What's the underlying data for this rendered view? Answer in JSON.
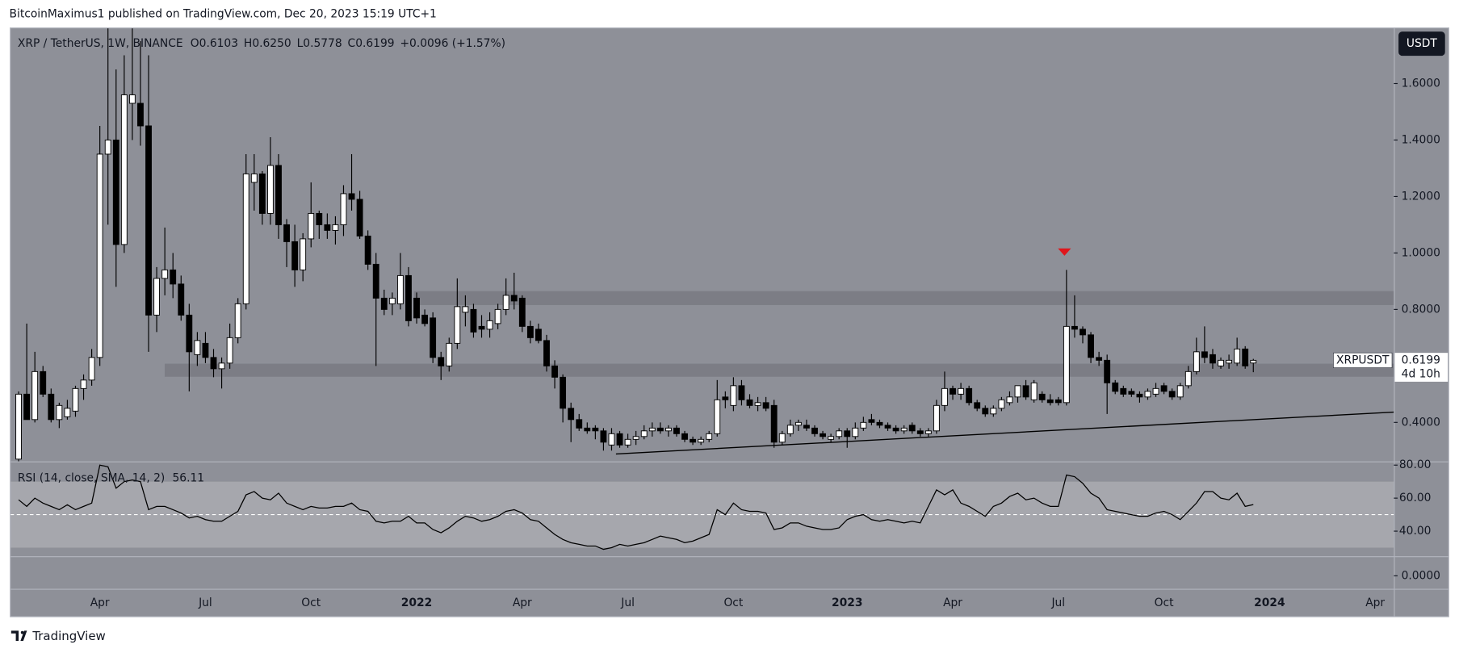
{
  "header": "BitcoinMaximus1 published on TradingView.com, Dec 20, 2023 15:19 UTC+1",
  "footer": "TradingView",
  "chart_data": [
    {
      "type": "candlestick",
      "title": "XRP / TetherUS, 1W, BINANCE",
      "legend": [
        {
          "key": "O",
          "value": "0.6103"
        },
        {
          "key": "H",
          "value": "0.6250"
        },
        {
          "key": "L",
          "value": "0.5778"
        },
        {
          "key": "C",
          "value": "0.6199"
        }
      ],
      "change": "+0.0096 (+1.57%)",
      "symbol": "XRPUSDT",
      "currency": "USDT",
      "countdown": "4d 10h",
      "up_color": "#ffffff",
      "down_color": "#000000",
      "ylim": [
        0.262,
        1.797
      ],
      "yticks": [
        {
          "value": 0.4,
          "label": "0.4000"
        },
        {
          "value": 0.8,
          "label": "0.8000"
        },
        {
          "value": 1.0,
          "label": "1.0000"
        },
        {
          "value": 1.2,
          "label": "1.2000"
        },
        {
          "value": 1.4,
          "label": "1.4000"
        },
        {
          "value": 1.6,
          "label": "1.6000"
        }
      ],
      "categories": [
        null,
        null,
        null,
        null,
        null,
        null,
        null,
        null,
        null,
        null,
        "Apr",
        null,
        null,
        null,
        null,
        null,
        null,
        null,
        null,
        null,
        null,
        null,
        null,
        "Jul",
        null,
        null,
        null,
        null,
        null,
        null,
        null,
        null,
        null,
        null,
        null,
        null,
        "Oct",
        null,
        null,
        null,
        null,
        null,
        null,
        null,
        null,
        null,
        null,
        null,
        null,
        "2022",
        null,
        null,
        null,
        null,
        null,
        null,
        null,
        null,
        null,
        null,
        null,
        null,
        "Apr",
        null,
        null,
        null,
        null,
        null,
        null,
        null,
        null,
        null,
        null,
        null,
        null,
        "Jul",
        null,
        null,
        null,
        null,
        null,
        null,
        null,
        null,
        null,
        null,
        null,
        null,
        "Oct",
        null,
        null,
        null,
        null,
        null,
        null,
        null,
        null,
        null,
        null,
        null,
        null,
        null,
        "2023",
        null,
        null,
        null,
        null,
        null,
        null,
        null,
        null,
        null,
        null,
        null,
        null,
        "Apr",
        null,
        null,
        null,
        null,
        null,
        null,
        null,
        null,
        null,
        null,
        null,
        null,
        "Jul",
        null,
        null,
        null,
        null,
        null,
        null,
        null,
        null,
        null,
        null,
        null,
        null,
        "Oct",
        null,
        null,
        null,
        null,
        null,
        null,
        null,
        null,
        null,
        null,
        null,
        null,
        "2024",
        null,
        null,
        null,
        null,
        null,
        null,
        null,
        null,
        null,
        null,
        null,
        null,
        "Apr"
      ],
      "open": [
        0.27,
        0.5,
        0.41,
        0.58,
        0.5,
        0.41,
        0.42,
        0.44,
        0.52,
        0.55,
        0.63,
        1.35,
        1.4,
        1.03,
        1.53,
        1.53,
        1.45,
        0.78,
        0.91,
        0.94,
        0.89,
        0.78,
        0.64,
        0.68,
        0.63,
        0.59,
        0.61,
        0.7,
        0.82,
        1.25,
        1.28,
        1.14,
        1.31,
        1.1,
        1.04,
        0.94,
        1.05,
        1.14,
        1.1,
        1.08,
        1.1,
        1.21,
        1.19,
        1.06,
        0.96,
        0.84,
        0.82,
        0.82,
        0.92,
        0.84,
        0.78,
        0.77,
        0.63,
        0.6,
        0.68,
        0.79,
        0.8,
        0.74,
        0.73,
        0.75,
        0.8,
        0.85,
        0.84,
        0.74,
        0.73,
        0.69,
        0.6,
        0.56,
        0.45,
        0.41,
        0.38,
        0.38,
        0.37,
        0.32,
        0.36,
        0.32,
        0.34,
        0.35,
        0.37,
        0.38,
        0.37,
        0.38,
        0.36,
        0.34,
        0.33,
        0.34,
        0.36,
        0.49,
        0.46,
        0.53,
        0.48,
        0.46,
        0.47,
        0.46,
        0.33,
        0.36,
        0.39,
        0.39,
        0.38,
        0.36,
        0.34,
        0.35,
        0.37,
        0.35,
        0.38,
        0.41,
        0.4,
        0.39,
        0.38,
        0.37,
        0.39,
        0.37,
        0.36,
        0.37,
        0.46,
        0.52,
        0.5,
        0.52,
        0.47,
        0.45,
        0.43,
        0.45,
        0.47,
        0.49,
        0.53,
        0.48,
        0.5,
        0.48,
        0.48,
        0.47,
        0.74,
        0.73,
        0.71,
        0.63,
        0.62,
        0.54,
        0.52,
        0.51,
        0.5,
        0.49,
        0.5,
        0.53,
        0.51,
        0.49,
        0.53,
        0.58,
        0.65,
        0.64,
        0.6,
        0.61,
        0.61,
        0.66,
        0.6103,
        null,
        null,
        null,
        null,
        null,
        null,
        null,
        null,
        null,
        null,
        null,
        null,
        null,
        null,
        null
      ],
      "high": [
        0.51,
        0.75,
        0.65,
        0.6,
        0.52,
        0.47,
        0.48,
        0.53,
        0.57,
        0.66,
        1.45,
        1.96,
        1.65,
        1.7,
        1.85,
        1.75,
        1.7,
        0.95,
        1.09,
        1.0,
        0.92,
        0.82,
        0.72,
        0.72,
        0.66,
        0.63,
        0.75,
        0.84,
        1.35,
        1.35,
        1.29,
        1.41,
        1.35,
        1.12,
        1.1,
        1.07,
        1.25,
        1.15,
        1.14,
        1.13,
        1.24,
        1.35,
        1.22,
        1.08,
        1.0,
        0.87,
        0.86,
        1.0,
        0.95,
        0.86,
        0.8,
        0.79,
        0.65,
        0.7,
        0.91,
        0.85,
        0.82,
        0.78,
        0.79,
        0.82,
        0.91,
        0.93,
        0.85,
        0.76,
        0.75,
        0.71,
        0.62,
        0.57,
        0.47,
        0.43,
        0.4,
        0.39,
        0.38,
        0.38,
        0.37,
        0.36,
        0.37,
        0.39,
        0.4,
        0.4,
        0.39,
        0.39,
        0.37,
        0.35,
        0.35,
        0.37,
        0.55,
        0.51,
        0.56,
        0.55,
        0.5,
        0.49,
        0.49,
        0.48,
        0.37,
        0.41,
        0.41,
        0.41,
        0.39,
        0.37,
        0.36,
        0.38,
        0.38,
        0.4,
        0.42,
        0.43,
        0.41,
        0.4,
        0.39,
        0.39,
        0.4,
        0.38,
        0.38,
        0.48,
        0.58,
        0.53,
        0.54,
        0.53,
        0.48,
        0.46,
        0.46,
        0.49,
        0.51,
        0.53,
        0.55,
        0.55,
        0.51,
        0.5,
        0.49,
        0.94,
        0.85,
        0.74,
        0.72,
        0.65,
        0.64,
        0.55,
        0.53,
        0.52,
        0.51,
        0.52,
        0.54,
        0.54,
        0.52,
        0.54,
        0.6,
        0.7,
        0.74,
        0.66,
        0.63,
        0.64,
        0.7,
        0.67,
        0.625,
        null,
        null,
        null,
        null,
        null,
        null,
        null,
        null,
        null,
        null,
        null,
        null,
        null,
        null,
        null
      ],
      "low": [
        0.26,
        0.41,
        0.4,
        0.49,
        0.4,
        0.38,
        0.41,
        0.42,
        0.48,
        0.53,
        0.6,
        1.1,
        0.88,
        1.0,
        1.4,
        1.38,
        0.65,
        0.72,
        0.85,
        0.84,
        0.76,
        0.51,
        0.6,
        0.61,
        0.56,
        0.52,
        0.59,
        0.68,
        0.8,
        1.15,
        1.1,
        1.1,
        1.05,
        0.95,
        0.88,
        0.9,
        1.02,
        1.05,
        1.05,
        1.03,
        1.06,
        1.15,
        1.05,
        0.94,
        0.6,
        0.78,
        0.78,
        0.8,
        0.74,
        0.75,
        0.74,
        0.61,
        0.55,
        0.58,
        0.66,
        0.74,
        0.7,
        0.7,
        0.7,
        0.73,
        0.78,
        0.8,
        0.72,
        0.68,
        0.68,
        0.58,
        0.52,
        0.4,
        0.33,
        0.37,
        0.36,
        0.34,
        0.3,
        0.3,
        0.31,
        0.31,
        0.32,
        0.34,
        0.35,
        0.36,
        0.35,
        0.35,
        0.33,
        0.32,
        0.32,
        0.33,
        0.35,
        0.45,
        0.44,
        0.46,
        0.45,
        0.44,
        0.44,
        0.31,
        0.32,
        0.35,
        0.37,
        0.37,
        0.35,
        0.34,
        0.33,
        0.34,
        0.31,
        0.34,
        0.37,
        0.39,
        0.38,
        0.37,
        0.36,
        0.36,
        0.36,
        0.35,
        0.35,
        0.36,
        0.44,
        0.48,
        0.48,
        0.46,
        0.44,
        0.42,
        0.42,
        0.44,
        0.46,
        0.47,
        0.48,
        0.47,
        0.47,
        0.46,
        0.46,
        0.46,
        0.7,
        0.68,
        0.61,
        0.6,
        0.43,
        0.5,
        0.49,
        0.49,
        0.47,
        0.48,
        0.49,
        0.5,
        0.48,
        0.48,
        0.52,
        0.57,
        0.61,
        0.59,
        0.59,
        0.59,
        0.6,
        0.59,
        0.5778,
        null,
        null,
        null,
        null,
        null,
        null,
        null,
        null,
        null,
        null,
        null,
        null,
        null,
        null,
        null
      ],
      "close": [
        0.5,
        0.41,
        0.58,
        0.5,
        0.41,
        0.46,
        0.45,
        0.52,
        0.55,
        0.63,
        1.35,
        1.4,
        1.03,
        1.56,
        1.56,
        1.45,
        0.78,
        0.91,
        0.94,
        0.89,
        0.78,
        0.65,
        0.69,
        0.63,
        0.59,
        0.61,
        0.7,
        0.82,
        1.28,
        1.28,
        1.14,
        1.31,
        1.1,
        1.04,
        0.94,
        1.05,
        1.14,
        1.1,
        1.08,
        1.1,
        1.21,
        1.19,
        1.06,
        0.96,
        0.84,
        0.8,
        0.84,
        0.92,
        0.76,
        0.77,
        0.75,
        0.63,
        0.6,
        0.68,
        0.81,
        0.81,
        0.72,
        0.73,
        0.76,
        0.8,
        0.85,
        0.83,
        0.74,
        0.7,
        0.69,
        0.6,
        0.56,
        0.45,
        0.41,
        0.38,
        0.37,
        0.37,
        0.33,
        0.36,
        0.32,
        0.34,
        0.35,
        0.37,
        0.38,
        0.37,
        0.38,
        0.36,
        0.34,
        0.33,
        0.34,
        0.36,
        0.48,
        0.48,
        0.53,
        0.48,
        0.46,
        0.47,
        0.45,
        0.33,
        0.36,
        0.39,
        0.4,
        0.38,
        0.36,
        0.35,
        0.35,
        0.37,
        0.35,
        0.38,
        0.4,
        0.4,
        0.39,
        0.38,
        0.37,
        0.38,
        0.37,
        0.36,
        0.37,
        0.46,
        0.52,
        0.5,
        0.52,
        0.47,
        0.45,
        0.43,
        0.45,
        0.48,
        0.49,
        0.53,
        0.49,
        0.54,
        0.48,
        0.47,
        0.47,
        0.74,
        0.73,
        0.71,
        0.63,
        0.62,
        0.54,
        0.51,
        0.5,
        0.5,
        0.49,
        0.51,
        0.52,
        0.51,
        0.49,
        0.53,
        0.58,
        0.65,
        0.63,
        0.61,
        0.62,
        0.62,
        0.66,
        0.6,
        0.6199,
        null,
        null,
        null,
        null,
        null,
        null,
        null,
        null,
        null,
        null,
        null,
        null,
        null,
        null,
        null
      ]
    },
    {
      "type": "line",
      "title": "RSI (14, close, SMA, 14, 2)",
      "color": "#000000",
      "ylim": [
        24.8,
        81.7
      ],
      "yticks": [
        {
          "value": 40,
          "label": "40.00"
        },
        {
          "value": 60,
          "label": "60.00"
        },
        {
          "value": 80,
          "label": "80.00"
        }
      ],
      "bands": [
        30,
        70
      ],
      "midline": 50,
      "values": [
        59,
        55,
        60,
        57,
        55,
        53,
        56,
        53,
        55,
        57,
        80,
        79,
        66,
        70,
        71,
        70,
        53,
        55,
        55,
        53,
        51,
        48,
        49,
        47,
        46,
        46,
        49,
        52,
        62,
        64,
        60,
        59,
        63,
        57,
        55,
        53,
        55,
        54,
        54,
        55,
        55,
        57,
        53,
        52,
        46,
        45,
        46,
        46,
        49,
        45,
        45,
        41,
        39,
        42,
        46,
        49,
        48,
        46,
        47,
        49,
        52,
        53,
        51,
        47,
        46,
        42,
        38,
        35,
        33,
        32,
        31,
        31,
        29,
        30,
        32,
        31,
        32,
        33,
        35,
        37,
        36,
        35,
        33,
        34,
        36,
        38,
        53,
        50,
        57,
        53,
        52,
        52,
        51,
        41,
        42,
        45,
        45,
        43,
        42,
        41,
        41,
        42,
        47,
        49,
        50,
        47,
        46,
        47,
        46,
        45,
        46,
        45,
        55,
        65,
        62,
        65,
        57,
        55,
        52,
        49,
        55,
        57,
        61,
        63,
        59,
        60,
        57,
        55,
        55,
        74,
        73,
        69,
        63,
        60,
        53,
        52,
        51,
        50,
        49,
        49,
        51,
        52,
        50,
        47,
        52,
        57,
        64,
        64,
        60,
        59,
        63,
        55,
        56.11,
        null,
        null,
        null,
        null,
        null,
        null,
        null,
        null,
        null,
        null,
        null,
        null,
        null,
        null,
        null
      ]
    },
    {
      "type": "pane",
      "yticks": [
        {
          "value": 0,
          "label": "0.0000"
        }
      ]
    }
  ]
}
